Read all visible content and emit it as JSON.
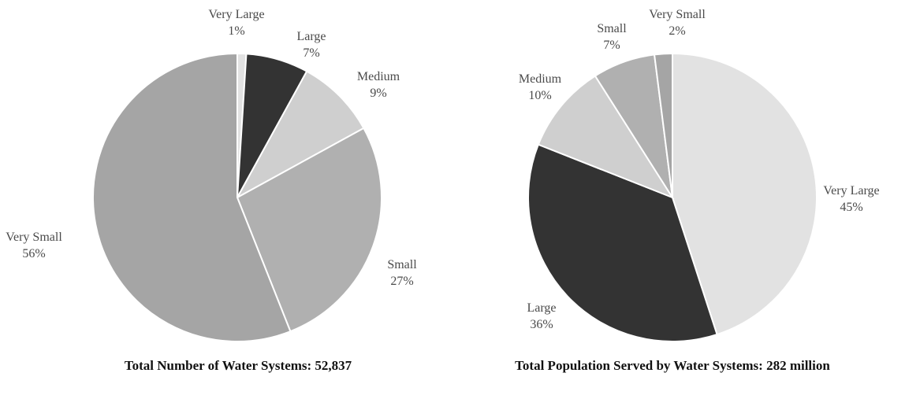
{
  "chart_data": [
    {
      "type": "pie",
      "title": "Total Number of Water Systems:  52,837",
      "slices": [
        {
          "name": "Very Large",
          "value": 1,
          "label": "1%",
          "color": "#e2e2e2"
        },
        {
          "name": "Large",
          "value": 7,
          "label": "7%",
          "color": "#333333"
        },
        {
          "name": "Medium",
          "value": 9,
          "label": "9%",
          "color": "#cfcfcf"
        },
        {
          "name": "Small",
          "value": 27,
          "label": "27%",
          "color": "#b0b0b0"
        },
        {
          "name": "Very Small",
          "value": 56,
          "label": "56%",
          "color": "#a5a5a5"
        }
      ]
    },
    {
      "type": "pie",
      "title": "Total Population Served by Water Systems:  282 million",
      "slices": [
        {
          "name": "Very Large",
          "value": 45,
          "label": "45%",
          "color": "#e2e2e2"
        },
        {
          "name": "Large",
          "value": 36,
          "label": "36%",
          "color": "#333333"
        },
        {
          "name": "Medium",
          "value": 10,
          "label": "10%",
          "color": "#cfcfcf"
        },
        {
          "name": "Small",
          "value": 7,
          "label": "7%",
          "color": "#b0b0b0"
        },
        {
          "name": "Very Small",
          "value": 2,
          "label": "2%",
          "color": "#a5a5a5"
        }
      ]
    }
  ]
}
